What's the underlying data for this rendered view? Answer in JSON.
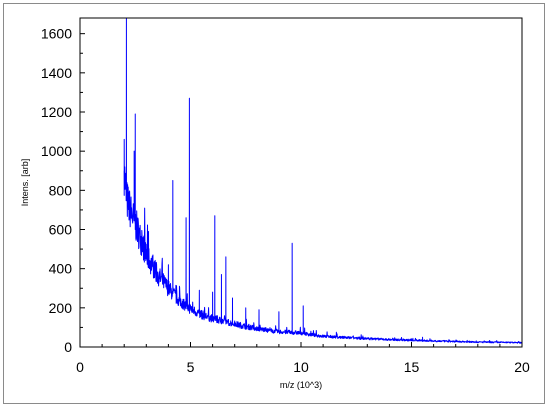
{
  "chart_data": {
    "type": "line",
    "title": "",
    "xlabel": "m/z (10^3)",
    "ylabel": "Intens. [arb]",
    "xlim": [
      0,
      20
    ],
    "ylim": [
      0,
      1680
    ],
    "x_ticks": [
      0,
      5,
      10,
      15,
      20
    ],
    "y_ticks": [
      0,
      200,
      400,
      600,
      800,
      1000,
      1200,
      1400,
      1600
    ],
    "grid": false,
    "legend": "none",
    "line_color": "#0000ff",
    "series": [
      {
        "baseline": [
          [
            2.0,
            900
          ],
          [
            2.1,
            760
          ],
          [
            2.3,
            690
          ],
          [
            2.6,
            600
          ],
          [
            3.0,
            470
          ],
          [
            3.5,
            370
          ],
          [
            4.0,
            300
          ],
          [
            4.5,
            235
          ],
          [
            5.0,
            195
          ],
          [
            5.5,
            165
          ],
          [
            6.0,
            145
          ],
          [
            6.5,
            132
          ],
          [
            7.0,
            118
          ],
          [
            7.5,
            105
          ],
          [
            8.0,
            95
          ],
          [
            8.5,
            85
          ],
          [
            9.0,
            78
          ],
          [
            9.5,
            75
          ],
          [
            10.0,
            72
          ],
          [
            10.5,
            62
          ],
          [
            11.0,
            55
          ],
          [
            12.0,
            48
          ],
          [
            13.0,
            43
          ],
          [
            14.0,
            38
          ],
          [
            15.0,
            35
          ],
          [
            16.0,
            31
          ],
          [
            17.0,
            28
          ],
          [
            18.0,
            25
          ],
          [
            19.0,
            24
          ],
          [
            20.0,
            22
          ]
        ],
        "peaks": [
          [
            2.0,
            1060
          ],
          [
            2.1,
            1680
          ],
          [
            2.45,
            1000
          ],
          [
            2.5,
            1190
          ],
          [
            3.1,
            590
          ],
          [
            3.3,
            470
          ],
          [
            4.0,
            420
          ],
          [
            4.2,
            850
          ],
          [
            4.5,
            310
          ],
          [
            4.8,
            660
          ],
          [
            4.95,
            1270
          ],
          [
            5.4,
            290
          ],
          [
            6.0,
            280
          ],
          [
            6.1,
            670
          ],
          [
            6.4,
            370
          ],
          [
            6.6,
            460
          ],
          [
            6.9,
            250
          ],
          [
            7.5,
            200
          ],
          [
            8.1,
            190
          ],
          [
            9.0,
            180
          ],
          [
            9.6,
            530
          ],
          [
            10.1,
            210
          ],
          [
            11.6,
            75
          ],
          [
            15.5,
            50
          ]
        ]
      }
    ]
  }
}
